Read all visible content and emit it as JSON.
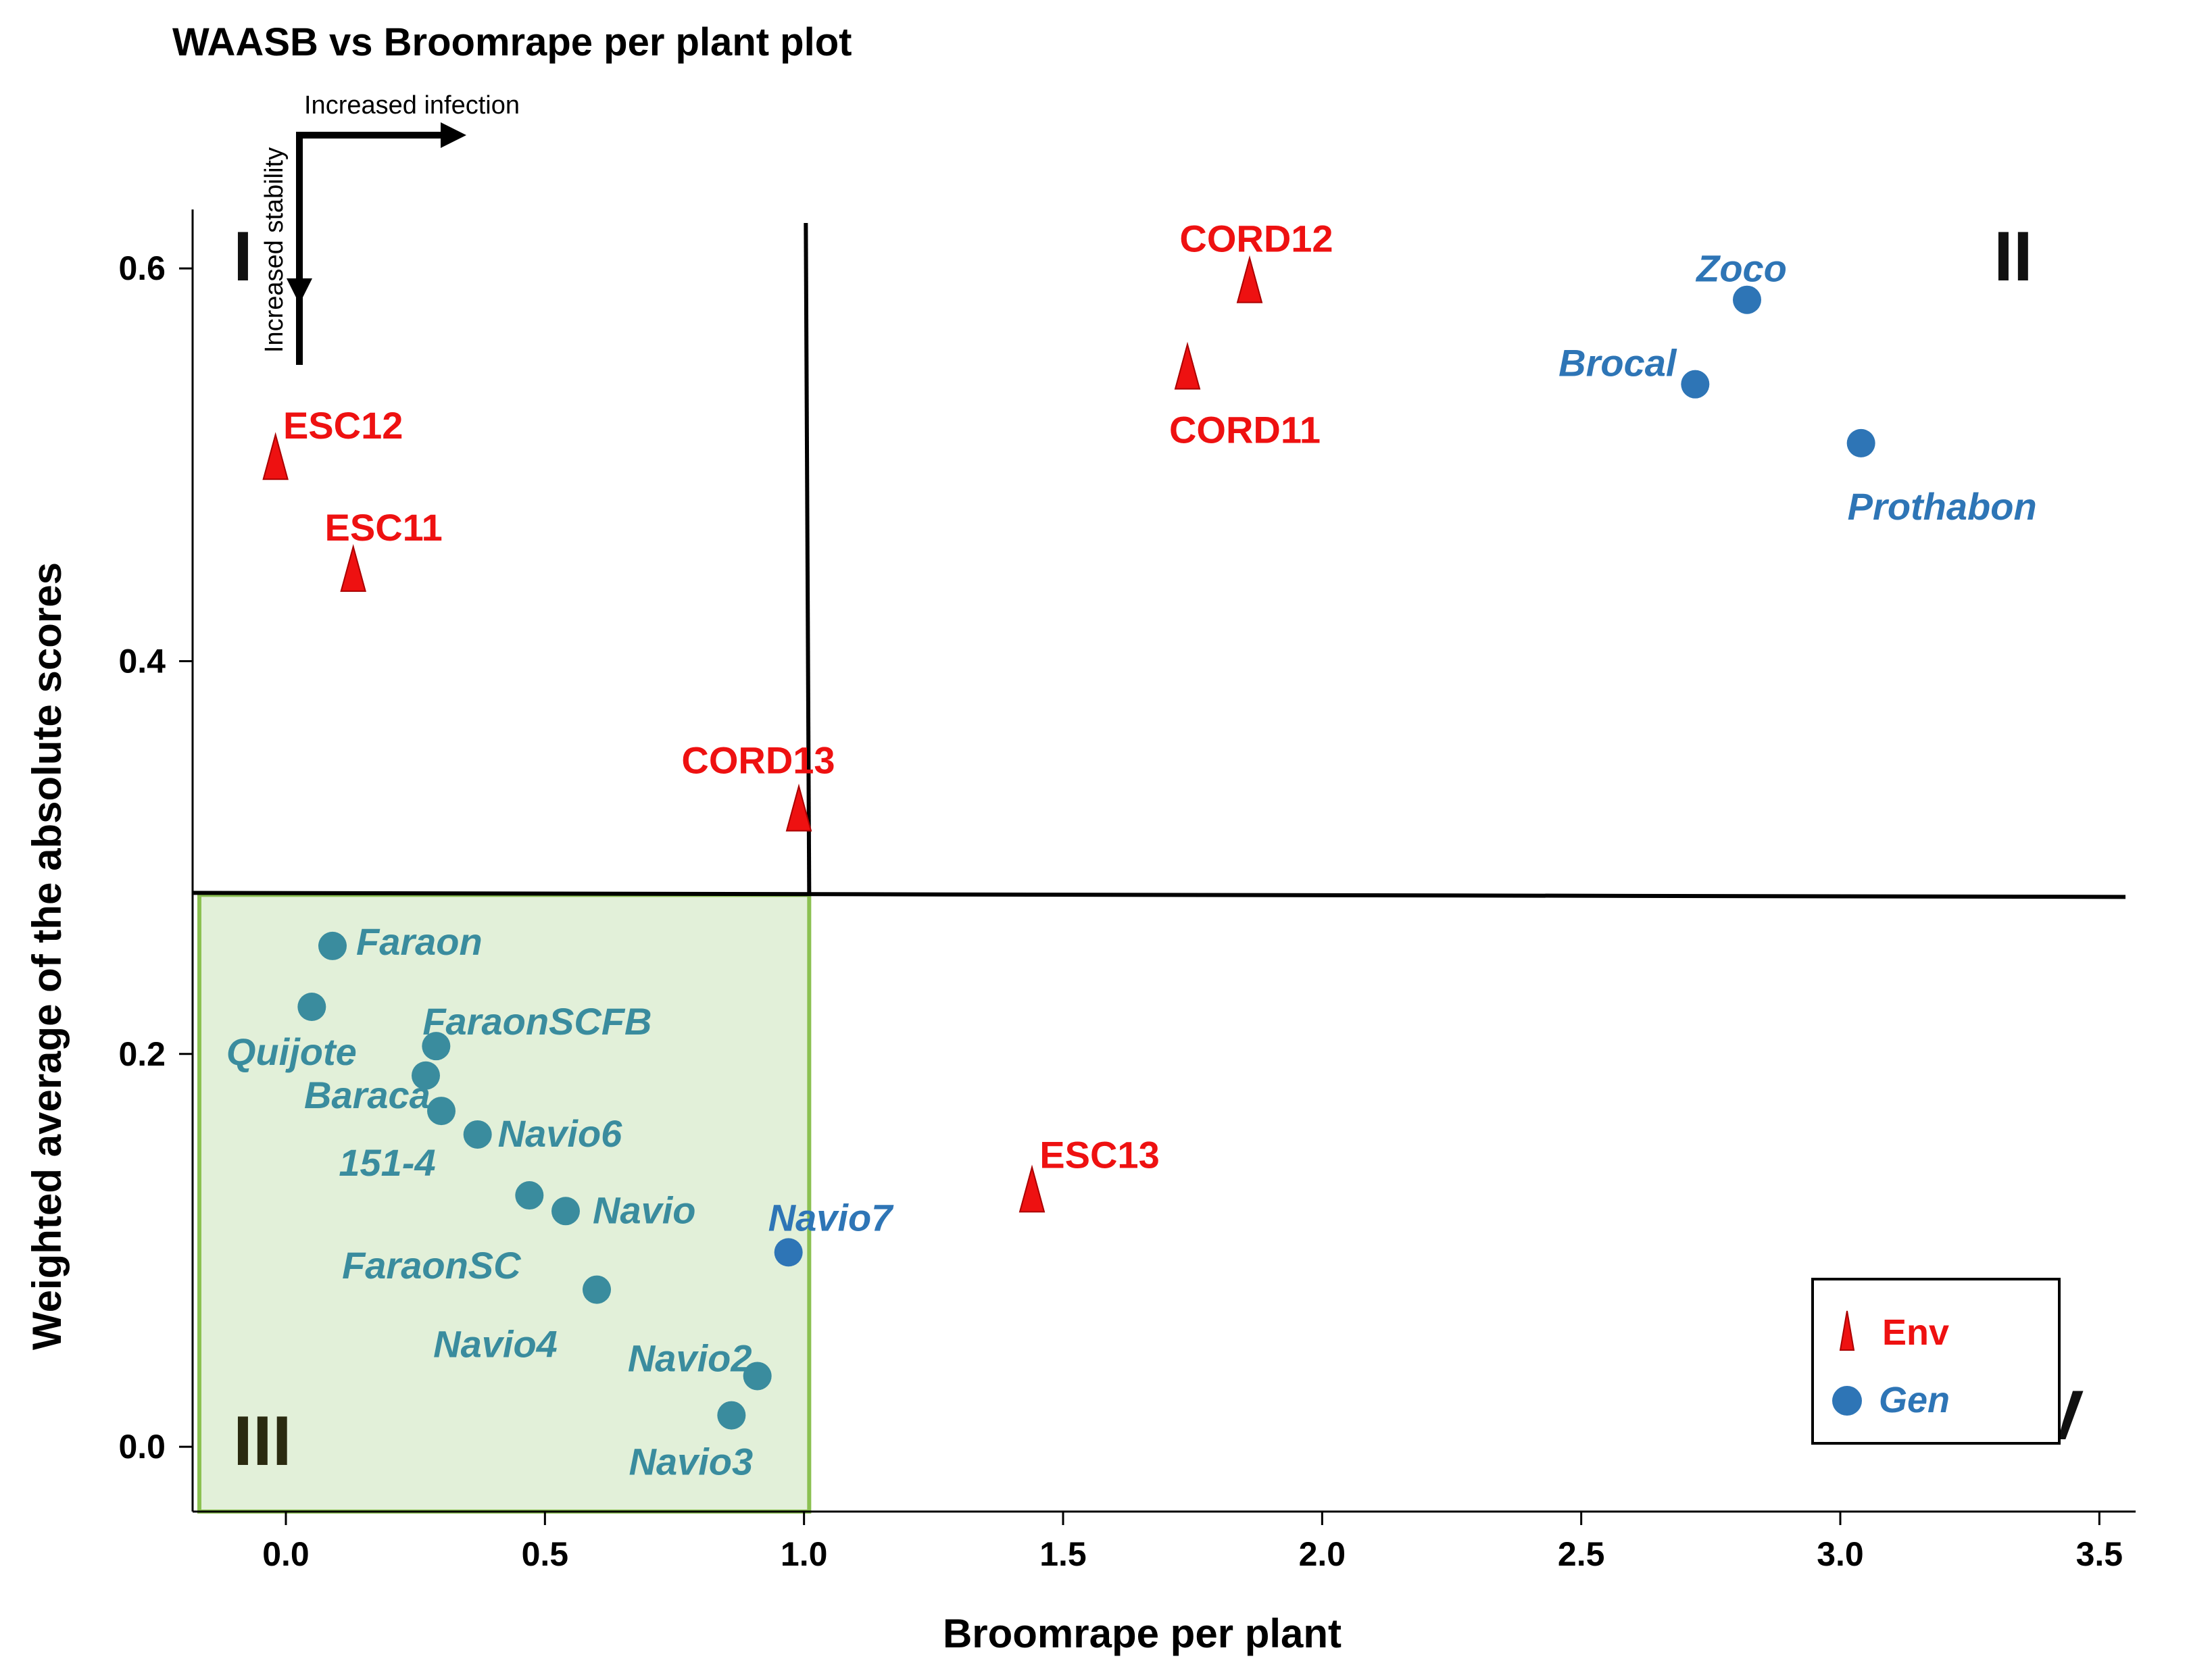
{
  "chart_data": {
    "type": "scatter",
    "title": "WAASB vs Broomrape per plant plot",
    "xlabel": "Broomrape per plant",
    "ylabel": "Weighted average of the absolute scores",
    "xlim": [
      -0.18,
      3.57
    ],
    "ylim": [
      -0.033,
      0.63
    ],
    "x_ticks": [
      0.0,
      0.5,
      1.0,
      1.5,
      2.0,
      2.5,
      3.0,
      3.5
    ],
    "x_tick_labels": [
      "0.0",
      "0.5",
      "1.0",
      "1.5",
      "2.0",
      "2.5",
      "3.0",
      "3.5"
    ],
    "y_ticks": [
      0.0,
      0.2,
      0.4,
      0.6
    ],
    "y_tick_labels": [
      "0.0",
      "0.2",
      "0.4",
      "0.6"
    ],
    "reference_lines": {
      "x": 1.01,
      "y": 0.281
    },
    "quadrant_labels": [
      "I",
      "II",
      "III",
      "IV"
    ],
    "annotations": {
      "x_arrow": "Increased infection",
      "y_arrow": "Increased stability"
    },
    "legend": {
      "position": "bottom-right",
      "entries": [
        "Env",
        "Gen"
      ]
    },
    "colors": {
      "env": "#ee1111",
      "gen_blue": "#2e75b6",
      "gen_teal": "#3a8c9e",
      "highlight_fill": "#e2f0d9",
      "highlight_stroke": "#8cc152"
    },
    "series": [
      {
        "name": "Env",
        "marker": "triangle",
        "points": [
          {
            "label": "CORD12",
            "x": 1.86,
            "y": 0.594
          },
          {
            "label": "CORD11",
            "x": 1.74,
            "y": 0.55
          },
          {
            "label": "ESC12",
            "x": -0.02,
            "y": 0.504
          },
          {
            "label": "ESC11",
            "x": 0.13,
            "y": 0.447
          },
          {
            "label": "CORD13",
            "x": 0.99,
            "y": 0.325
          },
          {
            "label": "ESC13",
            "x": 1.44,
            "y": 0.131
          }
        ]
      },
      {
        "name": "Gen",
        "marker": "circle",
        "points": [
          {
            "label": "Zoco",
            "x": 2.82,
            "y": 0.584,
            "group": "blue"
          },
          {
            "label": "Brocal",
            "x": 2.72,
            "y": 0.541,
            "group": "blue"
          },
          {
            "label": "Prothabon",
            "x": 3.04,
            "y": 0.511,
            "group": "blue"
          },
          {
            "label": "Faraon",
            "x": 0.09,
            "y": 0.255,
            "group": "teal"
          },
          {
            "label": "Quijote",
            "x": 0.05,
            "y": 0.224,
            "group": "teal"
          },
          {
            "label": "FaraonSCFB",
            "x": 0.29,
            "y": 0.204,
            "group": "teal"
          },
          {
            "label": "Baraca",
            "x": 0.27,
            "y": 0.189,
            "group": "teal"
          },
          {
            "label": "151-4",
            "x": 0.3,
            "y": 0.171,
            "group": "teal"
          },
          {
            "label": "Navio6",
            "x": 0.37,
            "y": 0.159,
            "group": "teal"
          },
          {
            "label": "FaraonSC",
            "x": 0.47,
            "y": 0.128,
            "group": "teal"
          },
          {
            "label": "Navio",
            "x": 0.54,
            "y": 0.12,
            "group": "teal"
          },
          {
            "label": "Navio7",
            "x": 0.97,
            "y": 0.099,
            "group": "blue"
          },
          {
            "label": "Navio4",
            "x": 0.6,
            "y": 0.08,
            "group": "teal"
          },
          {
            "label": "Navio2",
            "x": 0.91,
            "y": 0.036,
            "group": "teal"
          },
          {
            "label": "Navio3",
            "x": 0.86,
            "y": 0.016,
            "group": "teal"
          }
        ]
      }
    ]
  }
}
